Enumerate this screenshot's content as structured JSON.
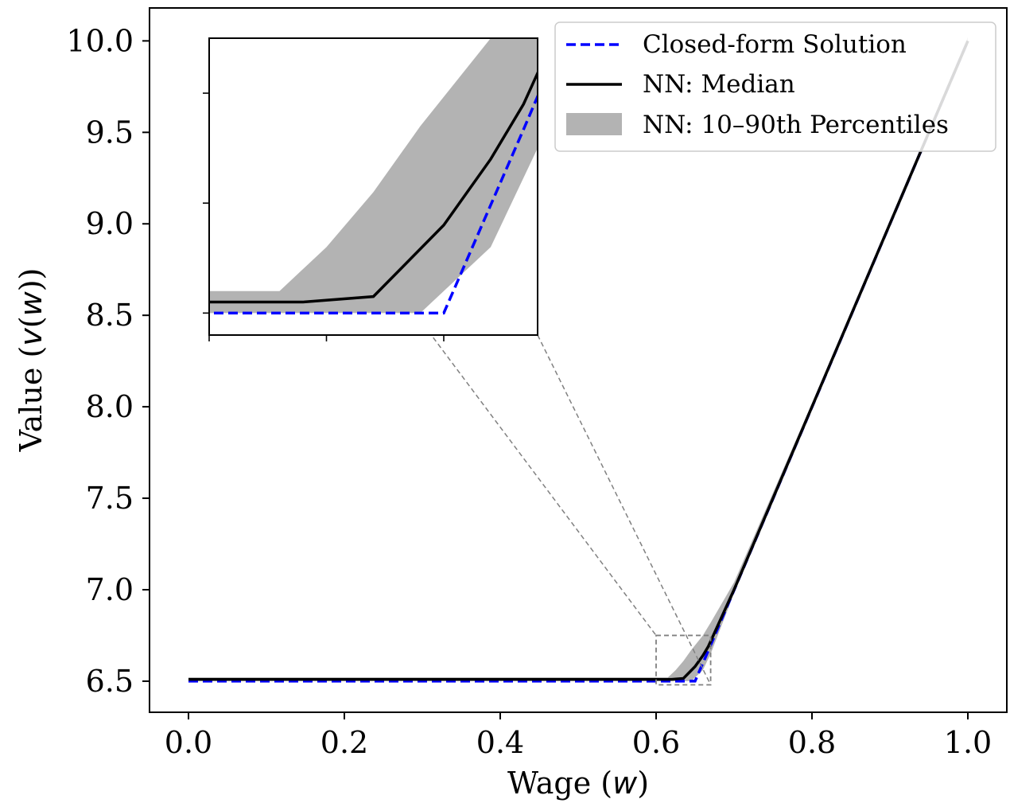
{
  "chart_data": {
    "type": "line",
    "xlabel": "Wage ($w$)",
    "xlabel_parts": [
      "Wage (",
      "w",
      ")"
    ],
    "ylabel": "Value ($v(w)$)",
    "ylabel_parts": [
      "Value (",
      "v",
      "(",
      "w",
      "))"
    ],
    "xlim": [
      -0.05,
      1.05
    ],
    "ylim": [
      6.33,
      10.18
    ],
    "xticks": [
      0.0,
      0.2,
      0.4,
      0.6,
      0.8,
      1.0
    ],
    "xtick_labels": [
      "0.0",
      "0.2",
      "0.4",
      "0.6",
      "0.8",
      "1.0"
    ],
    "yticks": [
      6.5,
      7.0,
      7.5,
      8.0,
      8.5,
      9.0,
      9.5,
      10.0
    ],
    "ytick_labels": [
      "6.5",
      "7.0",
      "7.5",
      "8.0",
      "8.5",
      "9.0",
      "9.5",
      "10.0"
    ],
    "grid": false,
    "legend_position": "top-right",
    "series": [
      {
        "name": "Closed-form Solution",
        "style": "dashed",
        "color": "#0000ff",
        "x": [
          0.0,
          0.65,
          0.667,
          1.0
        ],
        "y": [
          6.5,
          6.5,
          6.667,
          10.0
        ]
      },
      {
        "name": "NN: Median",
        "style": "solid",
        "color": "#000000",
        "x": [
          0.0,
          0.6,
          0.62,
          0.635,
          0.65,
          0.66,
          0.667,
          0.7,
          0.8,
          0.9,
          1.0
        ],
        "y": [
          6.51,
          6.51,
          6.51,
          6.515,
          6.58,
          6.64,
          6.69,
          7.0,
          8.0,
          9.0,
          10.0
        ]
      },
      {
        "name": "NN: 10–90th Percentiles",
        "style": "band",
        "color": "#b3b3b3",
        "x": [
          0.0,
          0.6,
          0.605,
          0.615,
          0.625,
          0.635,
          0.645,
          0.66,
          0.67,
          0.7,
          0.8,
          0.9,
          1.0
        ],
        "lower": [
          6.5,
          6.5,
          6.5,
          6.5,
          6.5,
          6.5,
          6.5,
          6.56,
          6.65,
          6.98,
          7.98,
          8.98,
          9.98
        ],
        "upper": [
          6.52,
          6.52,
          6.52,
          6.52,
          6.56,
          6.61,
          6.67,
          6.75,
          6.82,
          7.04,
          8.02,
          9.02,
          10.02
        ]
      }
    ],
    "inset": {
      "xlim": [
        0.6,
        0.67
      ],
      "ylim": [
        6.48,
        6.75
      ],
      "zoom_box": {
        "x": [
          0.6,
          0.67
        ],
        "y": [
          6.48,
          6.75
        ]
      },
      "tick_labels_shown": false
    }
  }
}
